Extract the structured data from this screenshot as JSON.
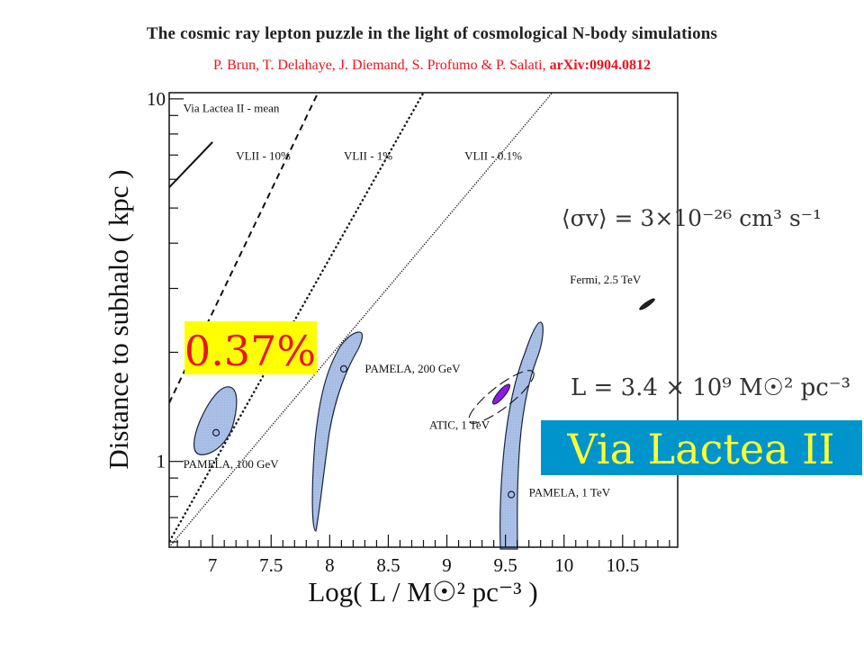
{
  "slide": {
    "title": "The cosmic ray lepton puzzle in the light of cosmological N-body simulations",
    "authors": "P. Brun, T. Delahaye, J. Diemand, S. Profumo & P. Salati, ",
    "arxiv": "arXiv:0904.0812",
    "highlight_percent": "0.37%",
    "sigma_v_label": "⟨σv⟩ = 3×10⁻²⁶ cm³ s⁻¹",
    "luminosity_label": "L = 3.4 × 10⁹ M☉² pc⁻³",
    "via_lactea_banner": "Via Lactea II",
    "colors": {
      "authors_red": "#e8141f",
      "highlight_bg": "#ffff00",
      "highlight_text": "#e8141f",
      "banner_bg": "#0094cc",
      "banner_text": "#ffff33",
      "region_fill": "#a9bfe6",
      "atic_fill": "#8a1ee0"
    }
  },
  "chart_data": {
    "type": "scatter",
    "xlabel": "Log( L / M☉² pc⁻³ )",
    "ylabel": "Distance to subhalo ( kpc )",
    "xlim": [
      6.63,
      10.97
    ],
    "ylim": [
      0.58,
      10.4
    ],
    "yscale": "log",
    "x_ticks": [
      "7",
      "7.5",
      "8",
      "8.5",
      "9",
      "9.5",
      "10",
      "10.5"
    ],
    "y_ticks": [
      "10",
      "1"
    ],
    "lines": [
      {
        "name": "Via Lactea II - mean",
        "style": "solid",
        "points": [
          [
            6.63,
            5.7
          ],
          [
            7.0,
            7.6
          ]
        ]
      },
      {
        "name": "VLII - 10%",
        "style": "dashed",
        "points": [
          [
            6.63,
            1.45
          ],
          [
            7.9,
            10.4
          ]
        ]
      },
      {
        "name": "VLII - 1%",
        "style": "dotted-dense",
        "points": [
          [
            6.63,
            0.6
          ],
          [
            8.8,
            10.4
          ]
        ]
      },
      {
        "name": "VLII - 0.1%",
        "style": "dotted-fine",
        "points": [
          [
            6.63,
            0.58
          ],
          [
            9.9,
            10.4
          ]
        ]
      }
    ],
    "line_labels": [
      {
        "text": "Via Lactea II - mean",
        "x": 6.75,
        "y": 9.2
      },
      {
        "text": "VLII - 10%",
        "x": 7.2,
        "y": 6.8
      },
      {
        "text": "VLII - 1%",
        "x": 8.12,
        "y": 6.8
      },
      {
        "text": "VLII - 0.1%",
        "x": 9.15,
        "y": 6.8
      }
    ],
    "regions": [
      {
        "name": "PAMELA, 100 GeV",
        "best_fit": [
          7.03,
          1.2
        ],
        "label_pos": [
          6.75,
          0.96
        ]
      },
      {
        "name": "PAMELA, 200 GeV",
        "best_fit": [
          8.12,
          1.8
        ],
        "label_pos": [
          8.3,
          1.76
        ]
      },
      {
        "name": "PAMELA, 1 TeV",
        "best_fit": [
          9.55,
          0.81
        ],
        "label_pos": [
          9.7,
          0.8
        ]
      },
      {
        "name": "ATIC, 1 TeV",
        "best_fit": [
          9.47,
          1.47
        ],
        "label_pos": [
          8.85,
          1.23
        ]
      },
      {
        "name": "Fermi, 2.5 TeV",
        "best_fit": [
          10.77,
          2.7
        ],
        "label_pos": [
          10.05,
          3.1
        ]
      }
    ]
  }
}
